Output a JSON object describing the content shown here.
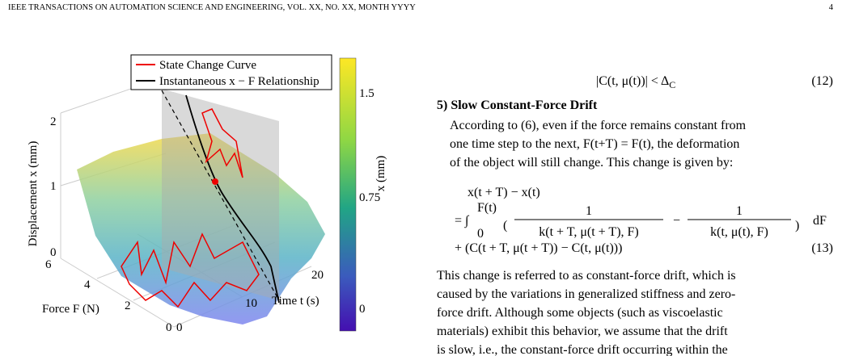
{
  "header": {
    "title": "IEEE TRANSACTIONS ON AUTOMATION SCIENCE AND ENGINEERING, VOL. XX, NO. XX, MONTH YYYY",
    "page": "4"
  },
  "figure": {
    "legend": [
      "State Change Curve",
      "Instantaneous x − F Relationship"
    ],
    "z_label": "Displacement x (mm)",
    "z_ticks": [
      "0",
      "1",
      "2"
    ],
    "force_label": "Force F (N)",
    "force_ticks": [
      "0",
      "2",
      "4",
      "6"
    ],
    "time_label": "Time t (s)",
    "time_ticks": [
      "0",
      "10",
      "20"
    ],
    "colorbar_label": "x (mm)",
    "colorbar_ticks": [
      "0",
      "0.75",
      "1.5"
    ]
  },
  "eq12": {
    "main": "|C(t, μ(t))| < Δ",
    "sub": "C",
    "number": "(12)"
  },
  "section": {
    "heading": "5) Slow Constant-Force Drift",
    "para1": [
      "According to (6), even if the force remains constant from",
      "one time step to the next, F(t+T) = F(t), the deformation",
      "of the object will still change. This change is given by:"
    ]
  },
  "eq13": {
    "line1": "x(t + T) − x(t)",
    "eq": "= ∫",
    "lower": "0",
    "upper": "F(t)",
    "open": "(",
    "num1": "1",
    "den1": "k(t + T, μ(t + T), F)",
    "minus": "−",
    "num2": "1",
    "den2": "k(t, μ(t), F)",
    "close": ")",
    "dF": "dF",
    "line3": "+ (C(t + T, μ(t + T)) − C(t, μ(t)))",
    "number": "(13)"
  },
  "para2": [
    "This change is referred to as constant-force drift, which is",
    "caused by the variations in generalized stiffness and zero-",
    "force drift. Although some objects (such as viscoelastic",
    "materials) exhibit this behavior, we assume that the drift",
    "is slow, i.e., the constant-force drift occurring within the"
  ]
}
